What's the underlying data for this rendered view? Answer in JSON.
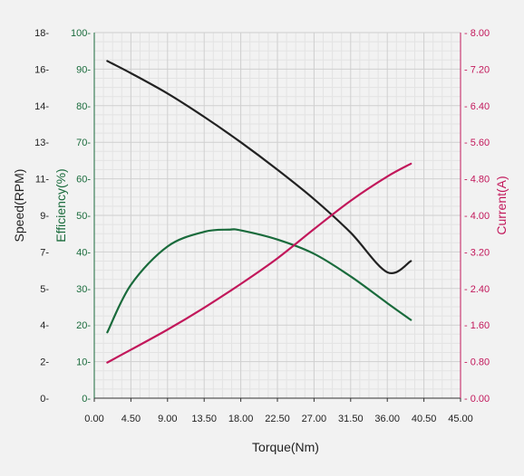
{
  "chart_data": {
    "type": "line",
    "xlabel": "Torque(Nm)",
    "x_ticks": [
      "0.00",
      "4.50",
      "9.00",
      "13.50",
      "18.00",
      "22.50",
      "27.00",
      "31.50",
      "36.00",
      "40.50",
      "45.00"
    ],
    "xlim": [
      0,
      45
    ],
    "grid": true,
    "axes": [
      {
        "id": "speed",
        "label": "Speed(RPM)",
        "color": "#222222",
        "side": "left-outer",
        "ticks": [
          "0-",
          "2-",
          "4-",
          "5-",
          "7-",
          "9-",
          "11-",
          "13-",
          "14-",
          "16-",
          "18-"
        ],
        "ylim": [
          0,
          18
        ]
      },
      {
        "id": "efficiency",
        "label": "Efficiency(%)",
        "color": "#1a6b3c",
        "side": "left-inner",
        "ticks": [
          "0-",
          "10-",
          "20-",
          "30-",
          "40-",
          "50-",
          "60-",
          "70-",
          "80-",
          "90-",
          "100-"
        ],
        "ylim": [
          0,
          100
        ]
      },
      {
        "id": "current",
        "label": "Current(A)",
        "color": "#c2185b",
        "side": "right",
        "ticks": [
          "- 0.00",
          "- 0.80",
          "- 1.60",
          "- 2.40",
          "- 3.20",
          "- 4.00",
          "- 4.80",
          "- 5.60",
          "- 6.40",
          "- 7.20",
          "- 8.00"
        ],
        "ylim": [
          0,
          8
        ]
      }
    ],
    "series": [
      {
        "axis": "speed",
        "color": "#222222",
        "x": [
          1.6,
          4.5,
          9,
          13.5,
          18,
          22.5,
          27,
          31.5,
          36,
          38.9
        ],
        "y": [
          16.6,
          16.0,
          15.0,
          13.85,
          12.6,
          11.25,
          9.8,
          8.15,
          6.2,
          6.75
        ]
      },
      {
        "axis": "efficiency",
        "color": "#1a6b3c",
        "x": [
          1.6,
          4.5,
          9,
          13.5,
          16.5,
          18,
          22.5,
          27,
          31.5,
          36,
          38.9
        ],
        "y": [
          18,
          31,
          41.5,
          45.5,
          46.1,
          45.9,
          43.4,
          39.5,
          33.3,
          26,
          21.4
        ]
      },
      {
        "axis": "current",
        "color": "#c2185b",
        "x": [
          1.6,
          4.5,
          9,
          13.5,
          18,
          22.5,
          27,
          31.5,
          36,
          38.9
        ],
        "y": [
          0.78,
          1.06,
          1.5,
          1.98,
          2.5,
          3.06,
          3.7,
          4.32,
          4.85,
          5.13
        ]
      }
    ]
  }
}
